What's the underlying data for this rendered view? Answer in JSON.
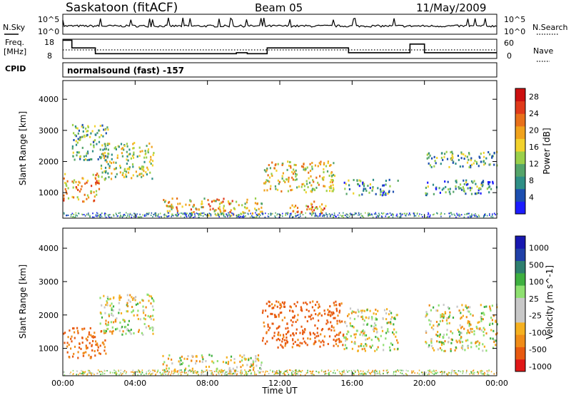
{
  "header": {
    "station": "Saskatoon (fitACF)",
    "beam": "Beam 05",
    "date": "11/May/2009"
  },
  "strips": {
    "nsky_label": "N.Sky",
    "nsky_ticks": [
      "10^5",
      "10^0"
    ],
    "nsearch_label": "N.Search",
    "nsearch_ticks": [
      "10^5",
      "10^0"
    ],
    "freq_label": "Freq.",
    "freq_unit": "[MHz]",
    "freq_ticks": [
      "18",
      "8"
    ],
    "nave_label": "Nave",
    "nave_ticks": [
      "60",
      "0"
    ],
    "cpid_label": "CPID",
    "cpid_value": "normalsound (fast) -157"
  },
  "colors": {
    "power_scale": [
      "#1c1cff",
      "#1d4fb0",
      "#2f8f86",
      "#55a56a",
      "#9ad04a",
      "#f2d22c",
      "#f0a21c",
      "#e8701a",
      "#e03a1a",
      "#cc1010"
    ],
    "velocity_scale": [
      "#e01818",
      "#e85a10",
      "#f08c18",
      "#f5b020",
      "#c8c8c8",
      "#c8c8c8",
      "#8ee070",
      "#3fb040",
      "#2f7f6f",
      "#2040a8",
      "#1818b0"
    ]
  },
  "chart_data": [
    {
      "type": "line",
      "name": "N.Sky / N.Search strip",
      "x": [
        "00:00",
        "04:00",
        "08:00",
        "12:00",
        "16:00",
        "20:00",
        "00:00"
      ],
      "yscale": "log",
      "ylim_label": [
        "10^0",
        "10^5"
      ]
    },
    {
      "type": "line",
      "name": "Freq / Nave strip",
      "x_hours": [
        0,
        0.5,
        0.5,
        1.8,
        1.8,
        9.6,
        9.6,
        10.2,
        10.2,
        11.3,
        11.3,
        15.8,
        15.8,
        19.2,
        19.2,
        20.0,
        20.0,
        24.0
      ],
      "freq_mhz": [
        17.5,
        17.5,
        13.5,
        13.5,
        10.5,
        10.5,
        11.0,
        11.0,
        10.5,
        10.5,
        13.5,
        13.5,
        11.0,
        11.0,
        15.5,
        15.5,
        11.0,
        11.0
      ],
      "ylim": [
        8,
        18
      ],
      "nave_ylim": [
        0,
        60
      ]
    },
    {
      "type": "heatmap",
      "title": "",
      "xlabel": "",
      "ylabel": "Slant Range [km]",
      "x_ticks": [
        "00:00",
        "04:00",
        "08:00",
        "12:00",
        "16:00",
        "20:00",
        "00:00"
      ],
      "y_ticks": [
        1000,
        2000,
        3000,
        4000
      ],
      "ylim": [
        180,
        4600
      ],
      "xlim_hours": [
        0,
        24
      ],
      "colorbar_label": "Power [dB]",
      "colorbar_ticks": [
        4,
        8,
        12,
        16,
        20,
        24,
        28
      ],
      "colorbar_range": [
        0,
        30
      ],
      "echo_regions": [
        {
          "t0": 0.0,
          "t1": 2.0,
          "r0": 700,
          "r1": 1600,
          "level": 0.65
        },
        {
          "t0": 0.5,
          "t1": 2.5,
          "r0": 2000,
          "r1": 3200,
          "level": 0.35
        },
        {
          "t0": 2.0,
          "t1": 5.0,
          "r0": 1400,
          "r1": 2600,
          "level": 0.45
        },
        {
          "t0": 5.5,
          "t1": 11.0,
          "r0": 250,
          "r1": 800,
          "level": 0.6
        },
        {
          "t0": 11.0,
          "t1": 15.0,
          "r0": 1000,
          "r1": 2000,
          "level": 0.55
        },
        {
          "t0": 12.5,
          "t1": 14.5,
          "r0": 300,
          "r1": 700,
          "level": 0.7
        },
        {
          "t0": 15.5,
          "t1": 18.5,
          "r0": 900,
          "r1": 1400,
          "level": 0.3
        },
        {
          "t0": 20.0,
          "t1": 24.0,
          "r0": 1800,
          "r1": 2300,
          "level": 0.35
        },
        {
          "t0": 20.0,
          "t1": 24.0,
          "r0": 900,
          "r1": 1400,
          "level": 0.3
        }
      ]
    },
    {
      "type": "heatmap",
      "title": "",
      "xlabel": "Time UT",
      "ylabel": "Slant Range [km]",
      "x_ticks": [
        "00:00",
        "04:00",
        "08:00",
        "12:00",
        "16:00",
        "20:00",
        "00:00"
      ],
      "y_ticks": [
        1000,
        2000,
        3000,
        4000
      ],
      "ylim": [
        180,
        4600
      ],
      "xlim_hours": [
        0,
        24
      ],
      "colorbar_label": "Velocity [m s^-1]",
      "colorbar_ticks": [
        1000,
        500,
        100,
        25,
        -25,
        -100,
        -500,
        -1000
      ],
      "echo_regions": [
        {
          "t0": 0.0,
          "t1": 2.5,
          "r0": 700,
          "r1": 1600,
          "velocity": -300
        },
        {
          "t0": 2.0,
          "t1": 5.0,
          "r0": 1400,
          "r1": 2600,
          "velocity": 0
        },
        {
          "t0": 5.5,
          "t1": 11.0,
          "r0": 250,
          "r1": 800,
          "velocity": 0
        },
        {
          "t0": 11.0,
          "t1": 15.5,
          "r0": 1000,
          "r1": 2400,
          "velocity": -400
        },
        {
          "t0": 15.5,
          "t1": 18.5,
          "r0": 900,
          "r1": 2200,
          "velocity": 0
        },
        {
          "t0": 20.0,
          "t1": 24.0,
          "r0": 900,
          "r1": 2300,
          "velocity": 0
        }
      ]
    }
  ]
}
